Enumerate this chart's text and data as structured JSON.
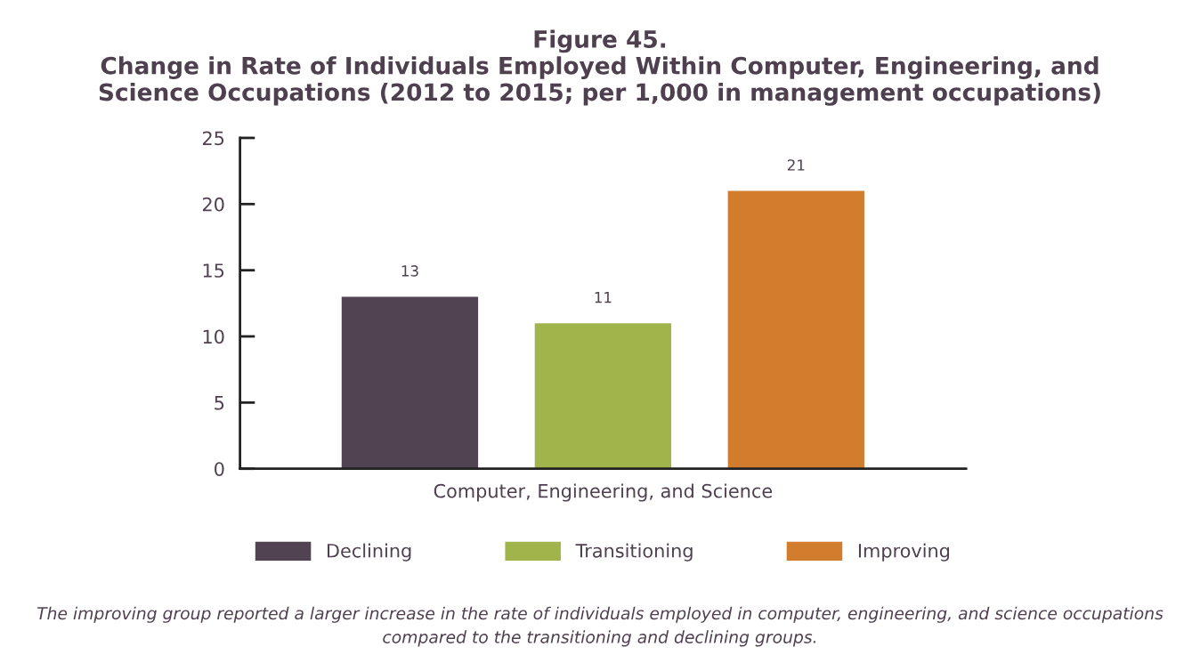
{
  "chart_data": {
    "type": "bar",
    "title": "Figure 45.\nChange in Rate of Individuals Employed Within Computer, Engineering, and\nScience Occupations (2012 to 2015; per 1,000 in management occupations)",
    "categories": [
      "Computer, Engineering, and Science"
    ],
    "series": [
      {
        "name": "Declining",
        "color": "#524352",
        "values": [
          13
        ]
      },
      {
        "name": "Transitioning",
        "color": "#a1b44c",
        "values": [
          11
        ]
      },
      {
        "name": "Improving",
        "color": "#d27c2e",
        "values": [
          21
        ]
      }
    ],
    "ylim": [
      0,
      25
    ],
    "yticks": [
      0,
      5,
      10,
      15,
      20,
      25
    ],
    "grid": false,
    "legend": "bottom",
    "data_labels": true,
    "annotations": [
      "The improving group reported a larger increase in the rate of individuals employed in computer, engineering, and science occupations compared to the transitioning and declining groups."
    ]
  }
}
